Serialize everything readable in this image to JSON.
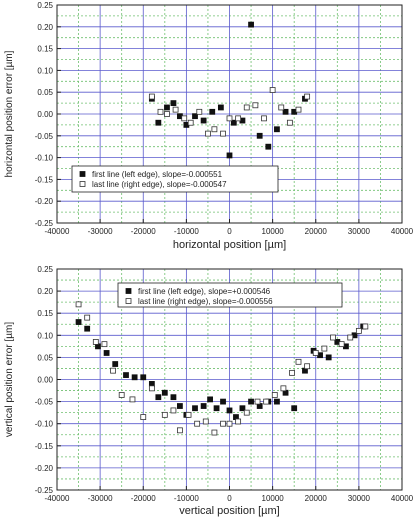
{
  "chart_data": [
    {
      "type": "scatter",
      "title": "",
      "xlabel": "horizontal position [µm]",
      "ylabel": "horizontal position error [µm]",
      "xlim": [
        -40000,
        40000
      ],
      "ylim": [
        -0.25,
        0.25
      ],
      "xticks": [
        -40000,
        -30000,
        -20000,
        -10000,
        0,
        10000,
        20000,
        30000,
        40000
      ],
      "yticks": [
        -0.25,
        -0.2,
        -0.15,
        -0.1,
        -0.05,
        0.0,
        0.05,
        0.1,
        0.15,
        0.2,
        0.25
      ],
      "xtick_labels": [
        "-40000",
        "-30000",
        "-20000",
        "-10000",
        "0",
        "10000",
        "20000",
        "30000",
        "40000"
      ],
      "ytick_labels": [
        "-0.25",
        "-0.20",
        "-0.15",
        "-0.10",
        "-0.05",
        "0.00",
        "0.05",
        "0.10",
        "0.15",
        "0.20",
        "0.25"
      ],
      "grid": true,
      "legend_position": "lower-left",
      "series": [
        {
          "name": "first line (left edge), slope=-0.000551",
          "marker": "filled-square",
          "x": [
            -18000,
            -16500,
            -14500,
            -13000,
            -11500,
            -10000,
            -8000,
            -6000,
            -4000,
            -2000,
            0,
            1000,
            3000,
            5000,
            7000,
            9000,
            11000,
            13000,
            15000,
            17500
          ],
          "y": [
            0.035,
            -0.02,
            0.015,
            0.025,
            -0.005,
            -0.025,
            -0.005,
            -0.015,
            0.005,
            0.015,
            -0.095,
            -0.02,
            -0.015,
            0.205,
            -0.05,
            -0.075,
            -0.035,
            0.005,
            0.005,
            0.035
          ]
        },
        {
          "name": "last line (right edge), slope=-0.000547",
          "marker": "open-square",
          "x": [
            -18000,
            -16000,
            -14500,
            -12500,
            -10500,
            -9000,
            -7000,
            -5000,
            -3500,
            -1500,
            0,
            2000,
            4000,
            6000,
            8000,
            10000,
            12000,
            14000,
            16000,
            18000
          ],
          "y": [
            0.04,
            0.005,
            0.0,
            0.01,
            -0.01,
            -0.02,
            0.005,
            -0.045,
            -0.035,
            -0.045,
            -0.01,
            -0.01,
            0.015,
            0.02,
            -0.01,
            0.055,
            0.015,
            -0.02,
            0.01,
            0.04
          ]
        }
      ]
    },
    {
      "type": "scatter",
      "title": "",
      "xlabel": "vertical position [µm]",
      "ylabel": "vertical position error [µm]",
      "xlim": [
        -40000,
        40000
      ],
      "ylim": [
        -0.25,
        0.25
      ],
      "xticks": [
        -40000,
        -30000,
        -20000,
        -10000,
        0,
        10000,
        20000,
        30000,
        40000
      ],
      "yticks": [
        -0.25,
        -0.2,
        -0.15,
        -0.1,
        -0.05,
        0.0,
        0.05,
        0.1,
        0.15,
        0.2,
        0.25
      ],
      "xtick_labels": [
        "-40000",
        "-30000",
        "-20000",
        "-10000",
        "0",
        "10000",
        "20000",
        "30000",
        "40000"
      ],
      "ytick_labels": [
        "-0.25",
        "-0.20",
        "-0.15",
        "-0.10",
        "-0.05",
        "0.00",
        "0.05",
        "0.10",
        "0.15",
        "0.20",
        "0.25"
      ],
      "grid": true,
      "legend_position": "top-center",
      "series": [
        {
          "name": "first line (left edge), slope=+0.000546",
          "marker": "filled-square",
          "x": [
            -35000,
            -33000,
            -30500,
            -28500,
            -26500,
            -24000,
            -22000,
            -20000,
            -18000,
            -16500,
            -15000,
            -13000,
            -11500,
            -10000,
            -8000,
            -6000,
            -4500,
            -3000,
            -1500,
            0,
            1500,
            3000,
            5000,
            7000,
            9000,
            11000,
            13000,
            15000,
            17500,
            19500,
            21000,
            23000,
            25000,
            27000,
            29000,
            31000
          ],
          "y": [
            0.13,
            0.115,
            0.075,
            0.06,
            0.035,
            0.01,
            0.005,
            0.005,
            -0.01,
            -0.04,
            -0.03,
            -0.04,
            -0.06,
            -0.08,
            -0.065,
            -0.06,
            -0.045,
            -0.065,
            -0.05,
            -0.07,
            -0.085,
            -0.065,
            -0.05,
            -0.06,
            -0.05,
            -0.05,
            -0.03,
            -0.065,
            0.02,
            0.065,
            0.055,
            0.05,
            0.085,
            0.075,
            0.1,
            0.12
          ]
        },
        {
          "name": "last line (right edge), slope=-0.000556",
          "marker": "open-square",
          "x": [
            -35000,
            -33000,
            -31000,
            -29000,
            -27000,
            -25000,
            -22500,
            -20000,
            -18000,
            -15000,
            -13000,
            -11500,
            -9500,
            -7500,
            -5500,
            -3500,
            -1500,
            0,
            2000,
            4000,
            6500,
            8500,
            10500,
            12500,
            14500,
            16000,
            18000,
            20000,
            22000,
            24000,
            26000,
            28000,
            30000,
            31500
          ],
          "y": [
            0.17,
            0.14,
            0.085,
            0.08,
            0.02,
            -0.035,
            -0.045,
            -0.085,
            -0.02,
            -0.08,
            -0.07,
            -0.115,
            -0.08,
            -0.1,
            -0.095,
            -0.12,
            -0.1,
            -0.1,
            -0.095,
            -0.075,
            -0.05,
            -0.05,
            -0.035,
            -0.02,
            0.015,
            0.04,
            0.03,
            0.06,
            0.07,
            0.095,
            0.08,
            0.095,
            0.11,
            0.12
          ]
        }
      ]
    }
  ]
}
